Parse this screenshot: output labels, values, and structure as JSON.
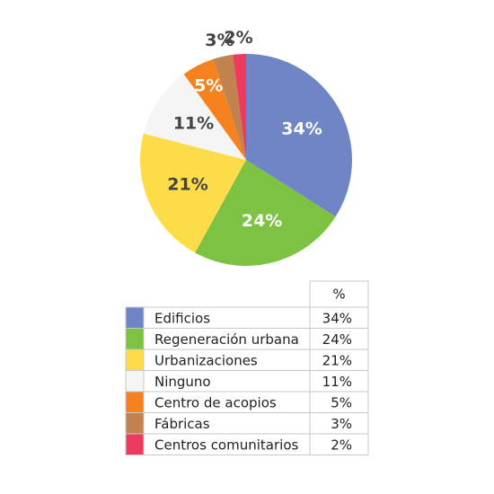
{
  "chart_data": {
    "type": "pie",
    "categories": [
      "Edificios",
      "Regeneración urbana",
      "Urbanizaciones",
      "Ninguno",
      "Centro de acopios",
      "Fábricas",
      "Centros comunitarios"
    ],
    "values": [
      34,
      24,
      21,
      11,
      5,
      3,
      2
    ],
    "value_labels": [
      "34%",
      "24%",
      "21%",
      "11%",
      "5%",
      "3%",
      "2%"
    ],
    "colors": [
      "#6f85c6",
      "#7dc242",
      "#fddc4a",
      "#f5f5f5",
      "#f5821f",
      "#c0834f",
      "#ee3a5f"
    ],
    "value_header": "%"
  }
}
